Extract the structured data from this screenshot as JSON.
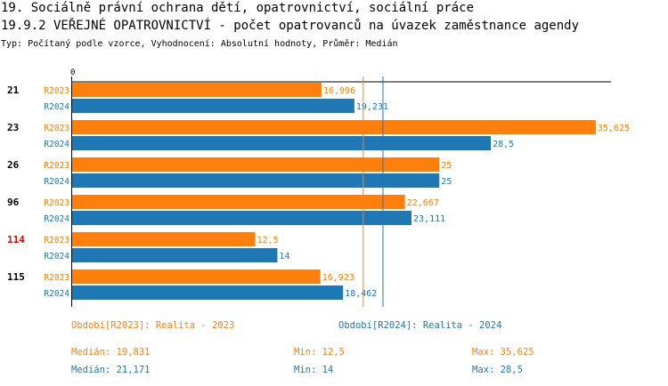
{
  "header": {
    "title_line1": "19. Sociálně právní ochrana dětí, opatrovnictví, sociální práce",
    "title_line2": "19.9.2 VEŘEJNÉ OPATROVNICTVÍ - počet opatrovanců na úvazek zaměstnance agendy",
    "subtitle": "Typ: Počítaný podle vzorce, Vyhodnocení: Absolutní hodnoty, Průměr: Medián"
  },
  "colors": {
    "r2023": "#ff7f0e",
    "r2024": "#1f77b4",
    "highlight": "#e00000"
  },
  "chart_data": {
    "type": "bar",
    "orientation": "horizontal",
    "axis_zero_label": "0",
    "xlim": [
      0,
      36.6
    ],
    "groups": [
      {
        "label": "21",
        "highlight": false,
        "values": [
          16.996,
          19.231
        ],
        "labels": [
          "16,996",
          "19,231"
        ]
      },
      {
        "label": "23",
        "highlight": false,
        "values": [
          35.625,
          28.5
        ],
        "labels": [
          "35,625",
          "28,5"
        ]
      },
      {
        "label": "26",
        "highlight": false,
        "values": [
          25,
          25
        ],
        "labels": [
          "25",
          "25"
        ]
      },
      {
        "label": "96",
        "highlight": false,
        "values": [
          22.667,
          23.111
        ],
        "labels": [
          "22,667",
          "23,111"
        ]
      },
      {
        "label": "114",
        "highlight": true,
        "values": [
          12.5,
          14
        ],
        "labels": [
          "12,5",
          "14"
        ]
      },
      {
        "label": "115",
        "highlight": false,
        "values": [
          16.923,
          18.462
        ],
        "labels": [
          "16,923",
          "18,462"
        ]
      }
    ],
    "series": [
      {
        "name": "R2023",
        "color": "#ff7f0e"
      },
      {
        "name": "R2024",
        "color": "#1f77b4"
      }
    ],
    "median_lines": [
      19.831,
      21.171
    ]
  },
  "legend": {
    "r2023_period": "Období[R2023]: Realita - 2023",
    "r2024_period": "Období[R2024]: Realita - 2024",
    "r2023_median": "Medián: 19,831",
    "r2023_min": "Min: 12,5",
    "r2023_max": "Max: 35,625",
    "r2024_median": "Medián: 21,171",
    "r2024_min": "Min: 14",
    "r2024_max": "Max: 28,5"
  }
}
